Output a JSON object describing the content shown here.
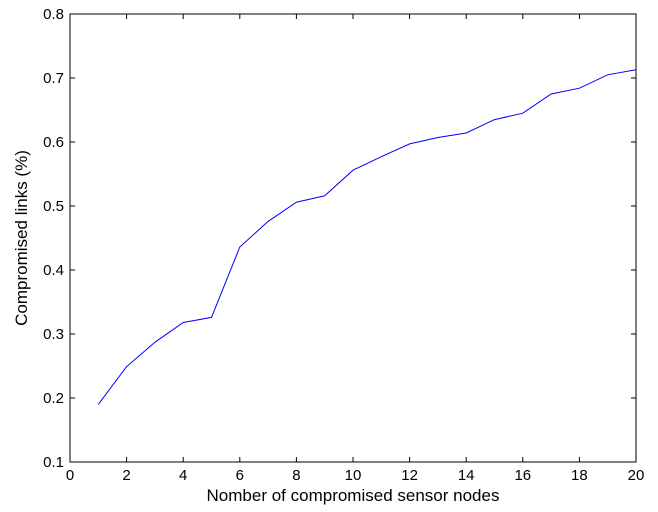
{
  "chart_data": {
    "type": "line",
    "title": "",
    "xlabel": "Nomber of compromised sensor nodes",
    "ylabel": "Compromised links (%)",
    "xlim": [
      0,
      20
    ],
    "ylim": [
      0.1,
      0.8
    ],
    "xticks": [
      "0",
      "2",
      "4",
      "6",
      "8",
      "10",
      "12",
      "14",
      "16",
      "18",
      "20"
    ],
    "yticks": [
      "0.1",
      "0.2",
      "0.3",
      "0.4",
      "0.5",
      "0.6",
      "0.7",
      "0.8"
    ],
    "grid": false,
    "series": [
      {
        "color": "#0000ff",
        "x": [
          1,
          2,
          3,
          4,
          5,
          6,
          7,
          8,
          9,
          10,
          11,
          12,
          13,
          14,
          15,
          16,
          17,
          18,
          19,
          20
        ],
        "y": [
          0.19,
          0.249,
          0.287,
          0.318,
          0.326,
          0.436,
          0.476,
          0.506,
          0.516,
          0.556,
          0.577,
          0.597,
          0.607,
          0.614,
          0.635,
          0.645,
          0.675,
          0.684,
          0.705,
          0.713
        ]
      }
    ]
  }
}
